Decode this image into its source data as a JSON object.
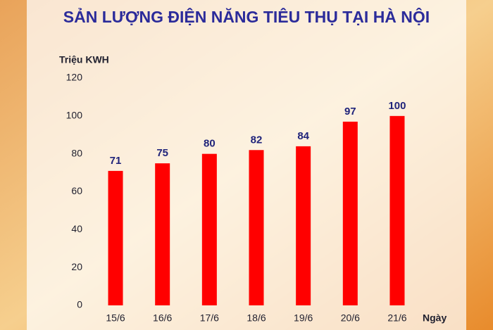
{
  "chart_data": {
    "type": "bar",
    "title": "SẢN LƯỢNG ĐIỆN NĂNG TIÊU THỤ TẠI HÀ NỘI",
    "y_label": "Triệu KWH",
    "x_label": "Ngày",
    "categories": [
      "15/6",
      "16/6",
      "17/6",
      "18/6",
      "19/6",
      "20/6",
      "21/6"
    ],
    "values": [
      71,
      75,
      80,
      82,
      84,
      97,
      100
    ],
    "color": "#ff0000",
    "ylim": [
      0,
      120
    ],
    "yticks": [
      0,
      20,
      40,
      60,
      80,
      100,
      120
    ],
    "grid": false
  }
}
